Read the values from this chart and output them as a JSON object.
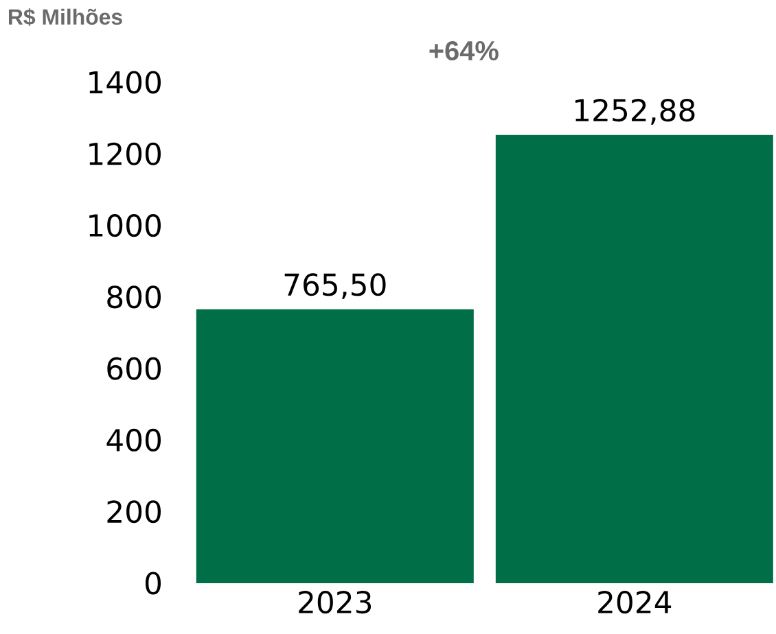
{
  "chart_data": {
    "type": "bar",
    "ylabel": "R$ Milhões",
    "annotations": [
      "+64%"
    ],
    "categories": [
      "2023",
      "2024"
    ],
    "values": [
      765.5,
      1252.88
    ],
    "value_labels": [
      "765,50",
      "1252,88"
    ],
    "color": "#006e46",
    "ylim": [
      0,
      1400
    ],
    "yticks": [
      0,
      200,
      400,
      600,
      800,
      1000,
      1200,
      1400
    ]
  }
}
